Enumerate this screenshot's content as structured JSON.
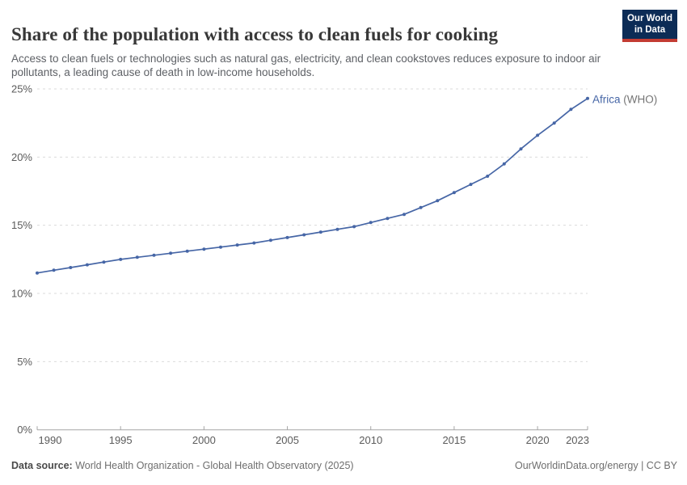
{
  "header": {
    "title": "Share of the population with access to clean fuels for cooking",
    "subtitle": "Access to clean fuels or technologies such as natural gas, electricity, and clean cookstoves reduces exposure to indoor air pollutants, a leading cause of death in low-income households.",
    "logo": {
      "line1": "Our World",
      "line2": "in Data",
      "bg_color": "#0C2C56",
      "stripe_color": "#C33C33"
    }
  },
  "chart_data": {
    "type": "line",
    "title": "Share of the population with access to clean fuels for cooking",
    "xlabel": "",
    "ylabel": "",
    "xlim": [
      1990,
      2023
    ],
    "ylim": [
      0,
      25
    ],
    "grid": "horizontal-dashed",
    "legend_position": "end-of-line",
    "x_ticks": [
      1990,
      1995,
      2000,
      2005,
      2010,
      2015,
      2020,
      2023
    ],
    "y_ticks": [
      0,
      5,
      10,
      15,
      20,
      25
    ],
    "y_tick_suffix": "%",
    "x": [
      1990,
      1991,
      1992,
      1993,
      1994,
      1995,
      1996,
      1997,
      1998,
      1999,
      2000,
      2001,
      2002,
      2003,
      2004,
      2005,
      2006,
      2007,
      2008,
      2009,
      2010,
      2011,
      2012,
      2013,
      2014,
      2015,
      2016,
      2017,
      2018,
      2019,
      2020,
      2021,
      2022,
      2023
    ],
    "series": [
      {
        "name": "Africa (WHO)",
        "label": "Africa",
        "label_suffix": " (WHO)",
        "color": "#4666A6",
        "values": [
          11.5,
          11.7,
          11.9,
          12.1,
          12.3,
          12.5,
          12.65,
          12.8,
          12.95,
          13.1,
          13.25,
          13.4,
          13.55,
          13.7,
          13.9,
          14.1,
          14.3,
          14.5,
          14.7,
          14.9,
          15.2,
          15.5,
          15.8,
          16.3,
          16.8,
          17.4,
          18.0,
          18.6,
          19.5,
          20.6,
          21.6,
          22.5,
          23.5,
          24.3
        ]
      }
    ],
    "colors": {
      "grid": "#DBDBDB",
      "axis": "#A5A5A5",
      "tick_label": "#5B5B5B",
      "suffix_label": "#757575"
    }
  },
  "footer": {
    "datasource_label": "Data source:",
    "datasource_text": " World Health Organization - Global Health Observatory (2025)",
    "credit": "OurWorldinData.org/energy | CC BY"
  }
}
